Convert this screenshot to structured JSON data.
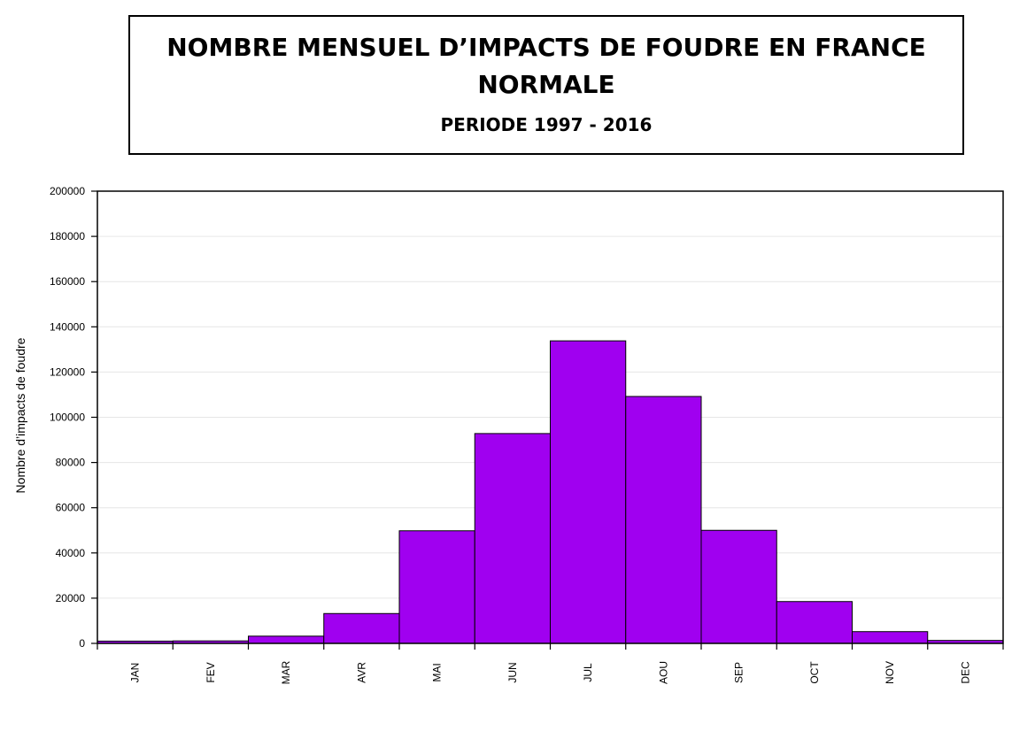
{
  "chart_data": {
    "type": "bar",
    "title": "NOMBRE MENSUEL D’IMPACTS DE FOUDRE EN FRANCE",
    "title_line2": "NORMALE",
    "subtitle": "PERIODE 1997 - 2016",
    "xlabel": "",
    "ylabel": "Nombre d’impacts de foudre",
    "categories": [
      "JAN",
      "FEV",
      "MAR",
      "AVR",
      "MAI",
      "JUN",
      "JUL",
      "AOU",
      "SEP",
      "OCT",
      "NOV",
      "DEC"
    ],
    "values": [
      1000,
      1100,
      3200,
      13200,
      49800,
      92800,
      133800,
      109200,
      50000,
      18500,
      5200,
      1300
    ],
    "ylim": [
      0,
      200000
    ],
    "yticks": [
      "0",
      "20000",
      "40000",
      "60000",
      "80000",
      "100000",
      "120000",
      "140000",
      "160000",
      "180000",
      "200000"
    ],
    "ytick_values": [
      0,
      20000,
      40000,
      60000,
      80000,
      100000,
      120000,
      140000,
      160000,
      180000,
      200000
    ],
    "grid": true,
    "bar_color": "#a000f0",
    "grid_color": "#e6e6e6"
  }
}
